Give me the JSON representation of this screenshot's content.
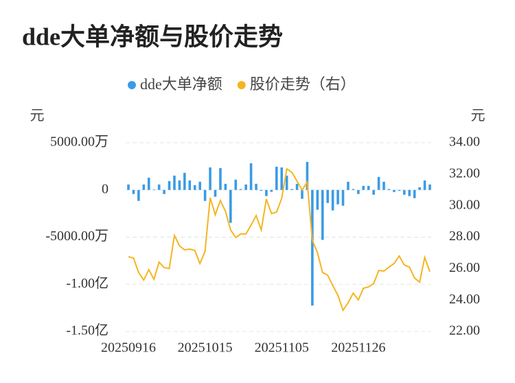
{
  "chart_data": {
    "type": "bar",
    "title": "dde大单净额与股价走势",
    "y_label": "元",
    "y2_label": "元",
    "categories": [
      "20250916",
      null,
      null,
      null,
      null,
      null,
      null,
      null,
      null,
      null,
      null,
      null,
      null,
      null,
      null,
      "20251015",
      null,
      null,
      null,
      null,
      null,
      null,
      null,
      null,
      null,
      null,
      null,
      null,
      null,
      null,
      "20251105",
      null,
      null,
      null,
      null,
      null,
      null,
      null,
      null,
      null,
      null,
      null,
      null,
      null,
      null,
      "20251126",
      null,
      null,
      null,
      null,
      null,
      null,
      null,
      null,
      null,
      null,
      null,
      null,
      null,
      null
    ],
    "series": [
      {
        "name": "dde大单净额",
        "type": "bar",
        "color": "#3a9be6",
        "values": [
          580,
          -430,
          -1160,
          580,
          1300,
          50,
          580,
          -430,
          940,
          1520,
          1010,
          1810,
          1010,
          510,
          870,
          -1160,
          2390,
          -720,
          2320,
          650,
          -3480,
          1090,
          100,
          580,
          2830,
          650,
          -100,
          -650,
          -200,
          2460,
          2390,
          1520,
          100,
          650,
          -940,
          2970,
          -12250,
          -2100,
          -5290,
          -1380,
          -2170,
          -1520,
          -1670,
          870,
          100,
          -430,
          430,
          430,
          -510,
          1380,
          870,
          100,
          -220,
          -100,
          -510,
          -650,
          -870,
          290,
          1010,
          580
        ]
      },
      {
        "name": "股价走势（右）",
        "type": "line",
        "axis": "y2",
        "color": "#f4b51f",
        "values": [
          26.76,
          26.67,
          25.75,
          25.27,
          25.93,
          25.32,
          26.41,
          26.06,
          26.01,
          28.11,
          27.45,
          27.19,
          27.24,
          27.15,
          26.32,
          27.1,
          30.51,
          29.42,
          30.33,
          29.64,
          28.46,
          27.98,
          28.2,
          28.2,
          28.76,
          29.37,
          28.46,
          30.42,
          29.5,
          29.59,
          30.46,
          32.34,
          32.12,
          31.56,
          30.99,
          31.51,
          27.8,
          27.02,
          25.75,
          25.58,
          24.92,
          24.31,
          23.35,
          23.83,
          24.44,
          24.01,
          24.75,
          24.84,
          25.05,
          25.88,
          25.84,
          26.1,
          26.32,
          26.8,
          26.23,
          26.1,
          25.4,
          25.14,
          26.71,
          25.8
        ]
      }
    ],
    "ylim": [
      -15000,
      5000
    ],
    "yticks": [
      {
        "value": 5000,
        "label": "5000.00万"
      },
      0,
      {
        "value": -5000,
        "label": "-5000.00万"
      },
      {
        "value": -10000,
        "label": "-1.00亿"
      },
      {
        "value": -15000,
        "label": "-1.50亿"
      }
    ],
    "y2lim": [
      22,
      34
    ],
    "y2ticks": [
      {
        "value": 34,
        "label": "34.00"
      },
      {
        "value": 32,
        "label": "32.00"
      },
      {
        "value": 30,
        "label": "30.00"
      },
      {
        "value": 28,
        "label": "28.00"
      },
      {
        "value": 26,
        "label": "26.00"
      },
      {
        "value": 24,
        "label": "24.00"
      },
      {
        "value": 22,
        "label": "22.00"
      }
    ],
    "grid": true
  }
}
